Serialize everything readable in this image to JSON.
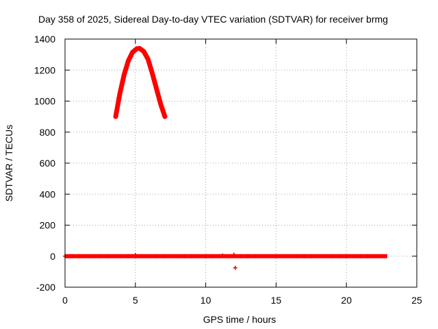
{
  "chart_data": {
    "type": "scatter",
    "title": "Day 358 of 2025, Sidereal Day-to-day VTEC variation (SDTVAR) for receiver brmg",
    "xlabel": "GPS time / hours",
    "ylabel": "SDTVAR / TECUs",
    "xlim": [
      0,
      25
    ],
    "ylim": [
      -200,
      1400
    ],
    "xticks": [
      "0",
      "5",
      "10",
      "15",
      "20",
      "25"
    ],
    "yticks": [
      "-200",
      "0",
      "200",
      "400",
      "600",
      "800",
      "1000",
      "1200",
      "1400"
    ],
    "grid": true,
    "marker": "+",
    "color": "#ff0000",
    "series": [
      {
        "name": "",
        "arc": {
          "x": [
            3.6,
            3.9,
            4.2,
            4.5,
            4.8,
            5.1,
            5.3,
            5.6,
            5.9,
            6.2,
            6.5,
            6.8,
            7.1
          ],
          "y": [
            900,
            1050,
            1170,
            1260,
            1315,
            1338,
            1340,
            1320,
            1270,
            1180,
            1080,
            980,
            900
          ]
        },
        "baseline": {
          "x_start": 0.0,
          "x_end": 22.9,
          "y": 0
        },
        "outliers": {
          "x": [
            12.1,
            12.0,
            5.0,
            11.2
          ],
          "y": [
            -75,
            10,
            8,
            5
          ]
        }
      }
    ]
  }
}
